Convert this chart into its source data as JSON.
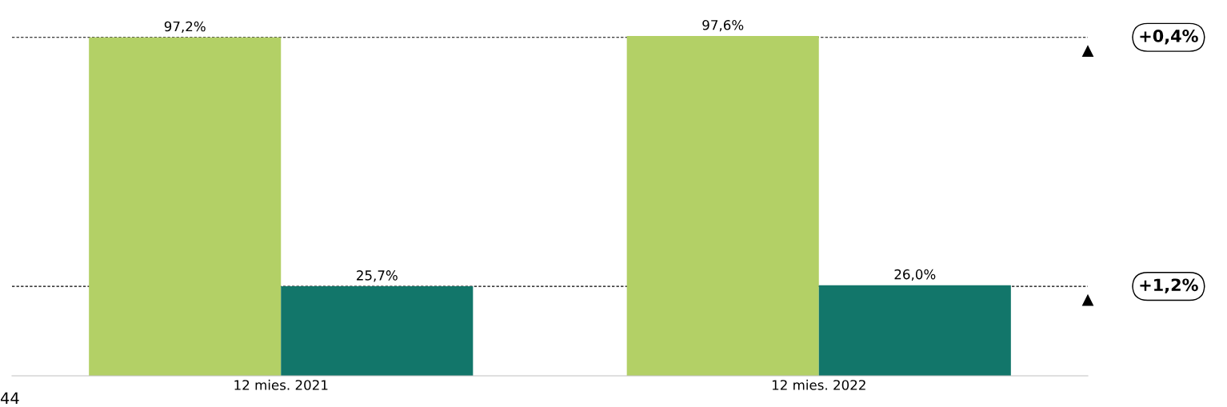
{
  "chart_data": {
    "type": "bar",
    "categories": [
      "12 mies. 2021",
      "12 mies. 2022"
    ],
    "series": [
      {
        "color": "#b3d066",
        "values": [
          97.2,
          97.6
        ],
        "value_labels": [
          "97,2%",
          "97,6%"
        ]
      },
      {
        "color": "#12766a",
        "values": [
          25.7,
          26.0
        ],
        "value_labels": [
          "25,7%",
          "26,0%"
        ]
      }
    ],
    "tick_labels": "x",
    "grid": false,
    "legend": false,
    "ref_lines": [
      {
        "axis": "y",
        "value": 97.2,
        "color": "#000000",
        "line_style": "dashed"
      },
      {
        "axis": "y",
        "value": 25.7,
        "color": "#000000",
        "line_style": "dashed"
      }
    ],
    "annotations": [
      "+0,4%",
      "+1,2%",
      "44"
    ]
  }
}
